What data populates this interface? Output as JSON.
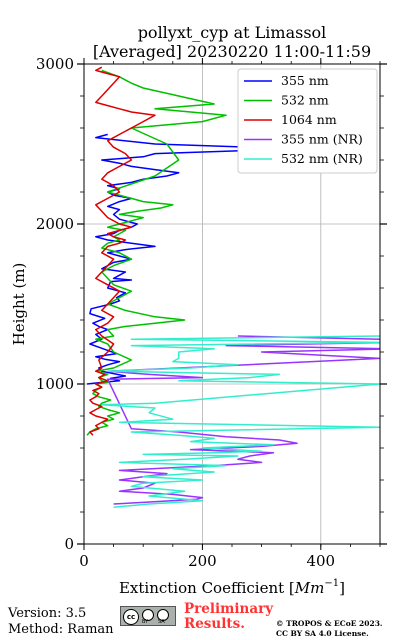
{
  "chart_data": {
    "type": "line",
    "title_line1": "pollyxt_cyp at Limassol",
    "title_line2": "[Averaged] 20230220 11:00-11:59",
    "xlabel_main": "Extinction Coefficient [",
    "xlabel_unit": "Mm",
    "xlabel_exp": "−1",
    "xlabel_end": "]",
    "ylabel": "Height (m)",
    "xlim": [
      0,
      500
    ],
    "ylim": [
      0,
      3000
    ],
    "x_ticks": [
      "0",
      "200",
      "400"
    ],
    "y_ticks": [
      "0",
      "1000",
      "2000",
      "3000"
    ],
    "grid": true,
    "legend_position": "top-right",
    "series": [
      {
        "name": "355 nm",
        "color": "#0000ff",
        "x": [
          5,
          30,
          60,
          45,
          70,
          50,
          30,
          25,
          40,
          60,
          35,
          20,
          55,
          40,
          25,
          10,
          30,
          20,
          40,
          25,
          15,
          35,
          10,
          12,
          45,
          60,
          55,
          70,
          40,
          45,
          80,
          50,
          60,
          70,
          30,
          40,
          50,
          80,
          60,
          40,
          70,
          120,
          80,
          40,
          20,
          50,
          60,
          80,
          90,
          60,
          50,
          60,
          40,
          60,
          80,
          50,
          40,
          60,
          40,
          80,
          100,
          140,
          160,
          120,
          80,
          60,
          30,
          100,
          120,
          360,
          120,
          20,
          40
        ],
        "y": [
          1000,
          1010,
          1020,
          1035,
          1050,
          1065,
          1080,
          1100,
          1120,
          1140,
          1155,
          1170,
          1190,
          1210,
          1230,
          1250,
          1280,
          1310,
          1340,
          1360,
          1380,
          1410,
          1440,
          1470,
          1500,
          1520,
          1540,
          1570,
          1600,
          1640,
          1650,
          1660,
          1680,
          1700,
          1720,
          1740,
          1760,
          1780,
          1800,
          1820,
          1840,
          1860,
          1880,
          1900,
          1920,
          1940,
          1960,
          1980,
          2000,
          2030,
          2060,
          2090,
          2110,
          2140,
          2160,
          2180,
          2200,
          2220,
          2240,
          2260,
          2280,
          2300,
          2320,
          2340,
          2360,
          2380,
          2400,
          2420,
          2440,
          2470,
          2500,
          2540,
          2560
        ]
      },
      {
        "name": "532 nm",
        "color": "#00c000",
        "x": [
          5,
          10,
          20,
          40,
          30,
          50,
          40,
          60,
          40,
          25,
          30,
          45,
          25,
          15,
          20,
          30,
          20,
          40,
          30,
          25,
          40,
          20,
          50,
          80,
          50,
          40,
          20,
          50,
          40,
          70,
          120,
          170,
          120,
          70,
          40,
          60,
          80,
          50,
          40,
          30,
          50,
          80,
          60,
          30,
          40,
          60,
          50,
          60,
          70,
          40,
          60,
          80,
          100,
          60,
          90,
          130,
          150,
          100,
          80,
          40,
          120,
          160,
          140,
          110,
          80,
          200,
          240,
          180,
          120,
          220,
          160,
          100,
          80,
          60,
          30
        ],
        "y": [
          680,
          700,
          720,
          740,
          760,
          780,
          800,
          820,
          840,
          860,
          880,
          900,
          920,
          940,
          960,
          980,
          1000,
          1010,
          1020,
          1040,
          1060,
          1080,
          1100,
          1150,
          1200,
          1250,
          1280,
          1300,
          1340,
          1360,
          1380,
          1400,
          1420,
          1460,
          1500,
          1540,
          1580,
          1620,
          1660,
          1700,
          1740,
          1780,
          1820,
          1850,
          1880,
          1900,
          1920,
          1940,
          1960,
          1980,
          2000,
          2020,
          2040,
          2060,
          2080,
          2100,
          2120,
          2140,
          2160,
          2200,
          2300,
          2400,
          2500,
          2550,
          2600,
          2640,
          2680,
          2700,
          2720,
          2750,
          2800,
          2850,
          2880,
          2920,
          2960
        ]
      },
      {
        "name": "1064 nm",
        "color": "#dd0000",
        "x": [
          15,
          10,
          25,
          20,
          30,
          40,
          20,
          10,
          20,
          30,
          15,
          10,
          20,
          25,
          15,
          30,
          20,
          40,
          25,
          35,
          20,
          30,
          25,
          40,
          50,
          30,
          20,
          40,
          50,
          30,
          40,
          50,
          60,
          40,
          20,
          30,
          40,
          50,
          30,
          40,
          60,
          70,
          50,
          40,
          60,
          80,
          60,
          40,
          30,
          20,
          40,
          60,
          50,
          30,
          40,
          60,
          80,
          70,
          50,
          40,
          60,
          80,
          100,
          120,
          80,
          60,
          40,
          20,
          30,
          40,
          50,
          60,
          40,
          20,
          30
        ],
        "y": [
          680,
          700,
          720,
          740,
          760,
          780,
          800,
          820,
          840,
          860,
          880,
          900,
          920,
          940,
          960,
          980,
          1000,
          1020,
          1040,
          1060,
          1080,
          1100,
          1150,
          1200,
          1250,
          1300,
          1340,
          1380,
          1420,
          1460,
          1500,
          1540,
          1580,
          1620,
          1660,
          1700,
          1740,
          1780,
          1820,
          1860,
          1880,
          1900,
          1920,
          1940,
          1960,
          1980,
          2000,
          2040,
          2080,
          2120,
          2160,
          2200,
          2240,
          2280,
          2320,
          2360,
          2400,
          2440,
          2480,
          2520,
          2560,
          2600,
          2640,
          2680,
          2700,
          2720,
          2740,
          2760,
          2800,
          2840,
          2880,
          2920,
          2940,
          2960,
          2980
        ]
      },
      {
        "name": "355 nm (NR)",
        "color": "#9933ff",
        "x": [
          50,
          100,
          190,
          200,
          150,
          60,
          100,
          120,
          60,
          100,
          140,
          60,
          220,
          300,
          260,
          280,
          320,
          180,
          300,
          360,
          330,
          240,
          160,
          80,
          40,
          200,
          110,
          40,
          160,
          500,
          300,
          520,
          240,
          520,
          500,
          260
        ],
        "y": [
          250,
          260,
          280,
          290,
          310,
          330,
          350,
          380,
          400,
          420,
          440,
          460,
          490,
          510,
          530,
          550,
          570,
          590,
          610,
          630,
          650,
          670,
          700,
          720,
          1030,
          1040,
          1060,
          1080,
          1100,
          1160,
          1200,
          1220,
          1240,
          1260,
          1280,
          1300
        ]
      },
      {
        "name": "532 nm (NR)",
        "color": "#33eecc",
        "x": [
          50,
          110,
          200,
          110,
          170,
          80,
          100,
          200,
          100,
          220,
          150,
          240,
          60,
          170,
          260,
          100,
          220,
          300,
          200,
          320,
          180,
          220,
          160,
          80,
          500,
          60,
          150,
          110,
          120,
          30,
          120,
          500,
          160,
          280,
          330,
          40,
          180,
          260,
          150,
          160,
          160,
          220,
          80,
          500,
          80,
          500
        ],
        "y": [
          230,
          250,
          270,
          300,
          330,
          360,
          380,
          400,
          420,
          450,
          470,
          490,
          510,
          530,
          550,
          560,
          570,
          580,
          600,
          620,
          640,
          660,
          680,
          700,
          730,
          760,
          780,
          820,
          850,
          870,
          880,
          1000,
          1020,
          1040,
          1060,
          1080,
          1100,
          1120,
          1140,
          1160,
          1200,
          1220,
          1240,
          1260,
          1280,
          1300
        ]
      }
    ]
  },
  "footer": {
    "version": "Version: 3.5",
    "method": "Method: Raman",
    "cc_label": "cc",
    "cc_by": "BY",
    "cc_sa": "SA",
    "preliminary_line1": "Preliminary",
    "preliminary_line2": "Results.",
    "copyright_line1": "© TROPOS & ECoE 2023.",
    "copyright_line2": "CC BY SA 4.0 License."
  }
}
